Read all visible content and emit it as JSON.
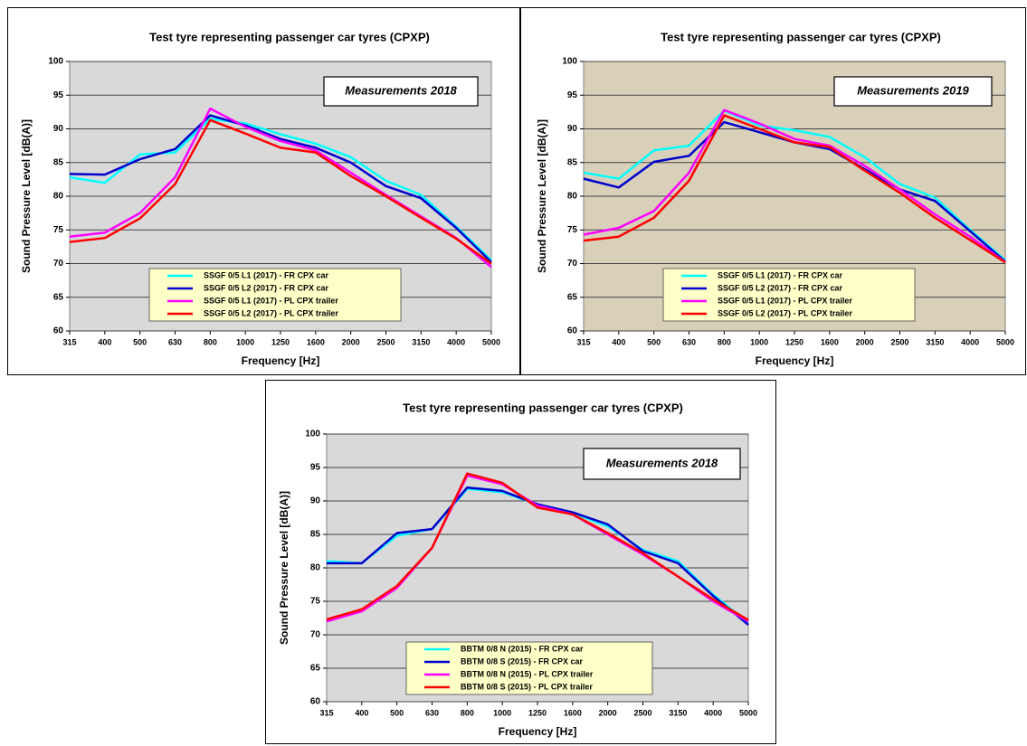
{
  "chart_data": [
    {
      "type": "line",
      "title": "Test tyre representing passenger car tyres    (CPXP)",
      "annotation": "Measurements 2018",
      "xlabel": "Frequency  [Hz]",
      "ylabel": "Sound Pressure Level   [dB(A)]",
      "categories": [
        "315",
        "400",
        "500",
        "630",
        "800",
        "1000",
        "1250",
        "1600",
        "2000",
        "2500",
        "3150",
        "4000",
        "5000"
      ],
      "series": [
        {
          "name": "SSGF 0/5 L1 (2017) - FR CPX car",
          "color": "#00ffff",
          "values": [
            82.8,
            82.0,
            86.2,
            86.5,
            91.5,
            90.8,
            89.2,
            87.8,
            85.8,
            82.3,
            80.2,
            75.5,
            70.5
          ]
        },
        {
          "name": "SSGF 0/5 L2 (2017) - FR CPX car",
          "color": "#0000cc",
          "values": [
            83.3,
            83.2,
            85.5,
            87.0,
            92.0,
            90.5,
            88.5,
            87.2,
            85.0,
            81.5,
            79.7,
            75.3,
            70.2
          ]
        },
        {
          "name": "SSGF 0/5 L1 (2017) - PL CPX trailer",
          "color": "#ff00ff",
          "values": [
            74.0,
            74.6,
            77.5,
            82.8,
            93.0,
            90.3,
            88.2,
            86.8,
            83.5,
            80.2,
            77.0,
            73.8,
            69.5
          ]
        },
        {
          "name": "SSGF 0/5 L2 (2017) - PL CPX trailer",
          "color": "#ff0000",
          "values": [
            73.2,
            73.8,
            76.7,
            81.8,
            91.3,
            89.3,
            87.2,
            86.5,
            83.0,
            80.0,
            76.8,
            73.7,
            70.0
          ]
        }
      ],
      "ylim": [
        60,
        100
      ],
      "yticks": [
        60,
        65,
        70,
        75,
        80,
        85,
        90,
        95,
        100
      ],
      "grid": true,
      "background": "#d9d9d9",
      "legend": "lower center"
    },
    {
      "type": "line",
      "title": "Test tyre representing passenger car tyres    (CPXP)",
      "annotation": "Measurements 2019",
      "xlabel": "Frequency  [Hz]",
      "ylabel": "Sound Pressure Level   [dB(A)]",
      "categories": [
        "315",
        "400",
        "500",
        "630",
        "800",
        "1000",
        "1250",
        "1600",
        "2000",
        "2500",
        "3150",
        "4000",
        "5000"
      ],
      "series": [
        {
          "name": "SSGF 0/5 L1 (2017) - FR CPX car",
          "color": "#00ffff",
          "values": [
            83.5,
            82.6,
            86.8,
            87.5,
            92.7,
            90.5,
            89.8,
            88.8,
            85.8,
            81.8,
            79.8,
            75.0,
            70.5
          ]
        },
        {
          "name": "SSGF 0/5 L2 (2017) - FR CPX car",
          "color": "#0000cc",
          "values": [
            82.6,
            81.3,
            85.1,
            86.0,
            91.0,
            89.5,
            88.0,
            87.0,
            84.0,
            81.0,
            79.3,
            74.8,
            70.3
          ]
        },
        {
          "name": "SSGF 0/5 L1 (2017) - PL CPX trailer",
          "color": "#ff00ff",
          "values": [
            74.3,
            75.3,
            77.8,
            83.5,
            92.8,
            90.8,
            88.5,
            87.5,
            84.5,
            81.0,
            77.3,
            74.0,
            70.2
          ]
        },
        {
          "name": "SSGF 0/5 L2 (2017) - PL CPX trailer",
          "color": "#ff0000",
          "values": [
            73.4,
            74.0,
            76.8,
            82.3,
            92.0,
            90.0,
            88.0,
            87.3,
            83.8,
            80.5,
            76.8,
            73.5,
            70.2
          ]
        }
      ],
      "ylim": [
        60,
        100
      ],
      "yticks": [
        60,
        65,
        70,
        75,
        80,
        85,
        90,
        95,
        100
      ],
      "grid": true,
      "background": "#d8d0b8",
      "legend": "lower center"
    },
    {
      "type": "line",
      "title": "Test tyre representing passenger car tyres    (CPXP)",
      "annotation": "Measurements 2018",
      "xlabel": "Frequency  [Hz]",
      "ylabel": "Sound Pressure Level   [dB(A)]",
      "categories": [
        "315",
        "400",
        "500",
        "630",
        "800",
        "1000",
        "1250",
        "1600",
        "2000",
        "2500",
        "3150",
        "4000",
        "5000"
      ],
      "series": [
        {
          "name": "BBTM 0/8 N (2015) - FR CPX car",
          "color": "#00ffff",
          "values": [
            81.0,
            80.7,
            84.8,
            85.8,
            91.8,
            91.3,
            89.5,
            88.2,
            86.2,
            82.7,
            81.0,
            76.0,
            71.8
          ]
        },
        {
          "name": "BBTM 0/8 S (2015) - FR CPX car",
          "color": "#0000cc",
          "values": [
            80.7,
            80.7,
            85.2,
            85.8,
            92.0,
            91.5,
            89.5,
            88.3,
            86.5,
            82.5,
            80.7,
            75.8,
            71.5
          ]
        },
        {
          "name": "BBTM 0/8 N (2015) - PL CPX trailer",
          "color": "#ff00ff",
          "values": [
            72.0,
            73.5,
            77.0,
            83.0,
            93.8,
            92.5,
            89.3,
            88.0,
            85.0,
            82.0,
            78.7,
            75.0,
            72.0
          ]
        },
        {
          "name": "BBTM 0/8 S (2015) - PL CPX trailer",
          "color": "#ff0000",
          "values": [
            72.3,
            73.8,
            77.3,
            83.0,
            94.1,
            92.7,
            89.0,
            88.0,
            85.2,
            82.2,
            78.7,
            75.3,
            72.2
          ]
        }
      ],
      "ylim": [
        60,
        100
      ],
      "yticks": [
        60,
        65,
        70,
        75,
        80,
        85,
        90,
        95,
        100
      ],
      "grid": true,
      "background": "#d9d9d9",
      "legend": "lower center"
    }
  ]
}
